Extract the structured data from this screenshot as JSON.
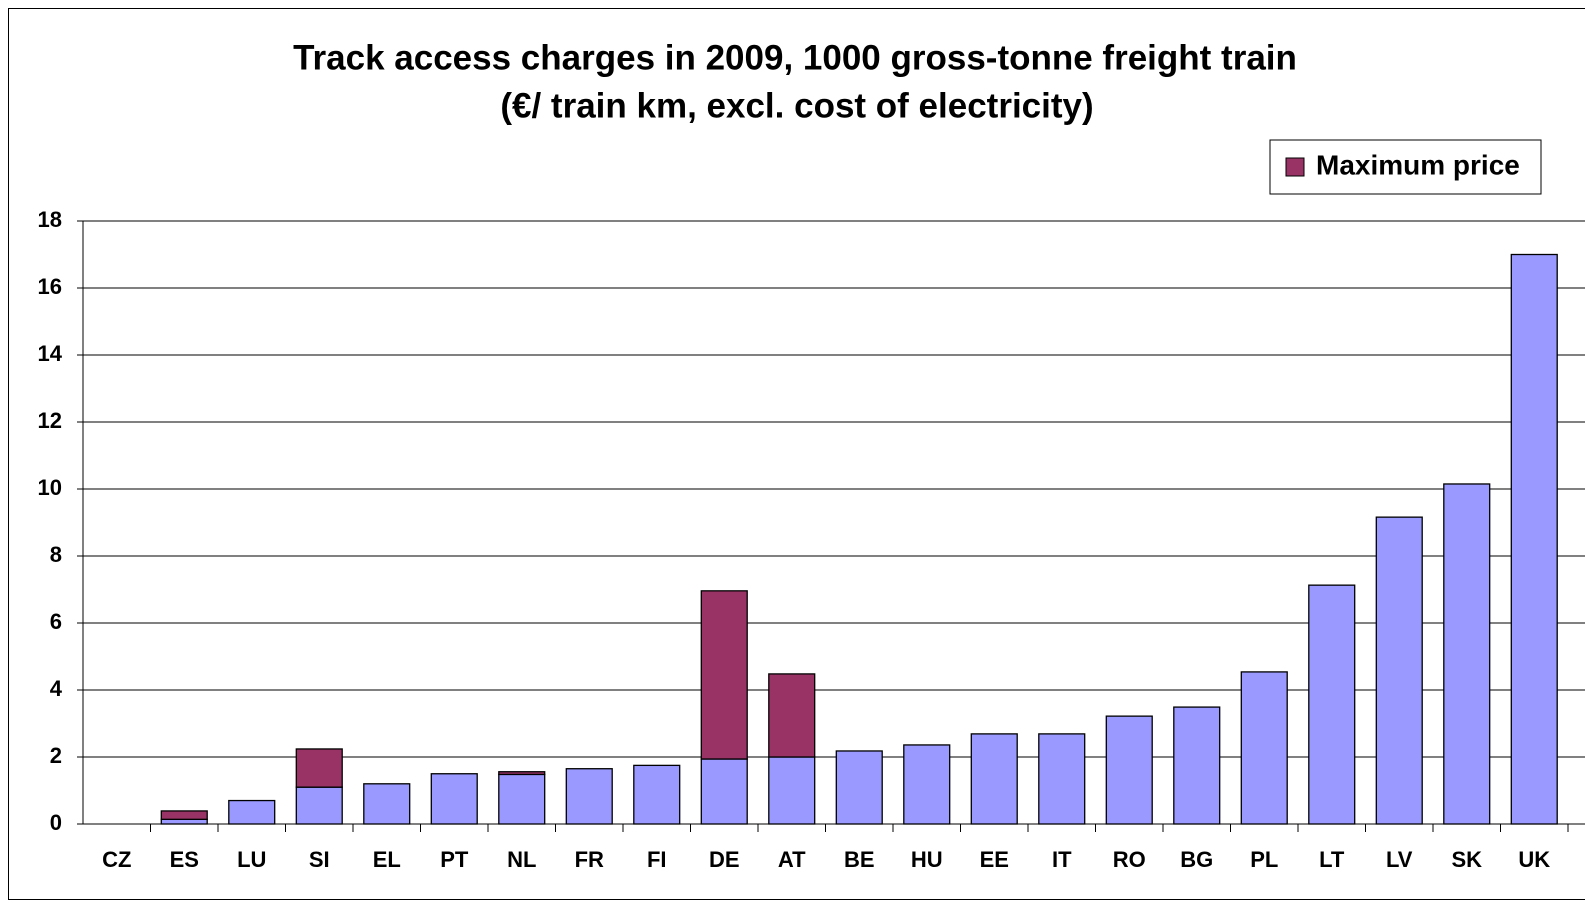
{
  "chart_data": {
    "type": "stacked_bar",
    "title": [
      "Track access charges in 2009, 1000 gross-tonne freight train",
      "(€/ train km, excl. cost of electricity)"
    ],
    "categories": [
      "CZ",
      "ES",
      "LU",
      "SI",
      "EL",
      "PT",
      "NL",
      "FR",
      "FI",
      "DE",
      "AT",
      "BE",
      "HU",
      "EE",
      "IT",
      "RO",
      "BG",
      "PL",
      "LT",
      "LV",
      "SK",
      "UK"
    ],
    "series": [
      {
        "color": "#9999ff",
        "values": [
          0,
          0.14,
          0.7,
          1.1,
          1.2,
          1.5,
          1.48,
          1.65,
          1.75,
          1.94,
          2.0,
          2.18,
          2.36,
          2.69,
          2.69,
          3.22,
          3.49,
          4.54,
          7.13,
          9.16,
          10.15,
          17.0
        ]
      },
      {
        "name": "Maximum price",
        "color": "#993366",
        "values": [
          0,
          0.25,
          0,
          1.14,
          0,
          0,
          0.08,
          0,
          0,
          5.02,
          2.48,
          0,
          0,
          0,
          0,
          0,
          0,
          0,
          0,
          0,
          0,
          0
        ]
      }
    ],
    "ylim": [
      0,
      18
    ],
    "yticks": [
      0,
      2,
      4,
      6,
      8,
      10,
      12,
      14,
      16,
      18
    ],
    "grid": true,
    "legend": "top-right"
  }
}
